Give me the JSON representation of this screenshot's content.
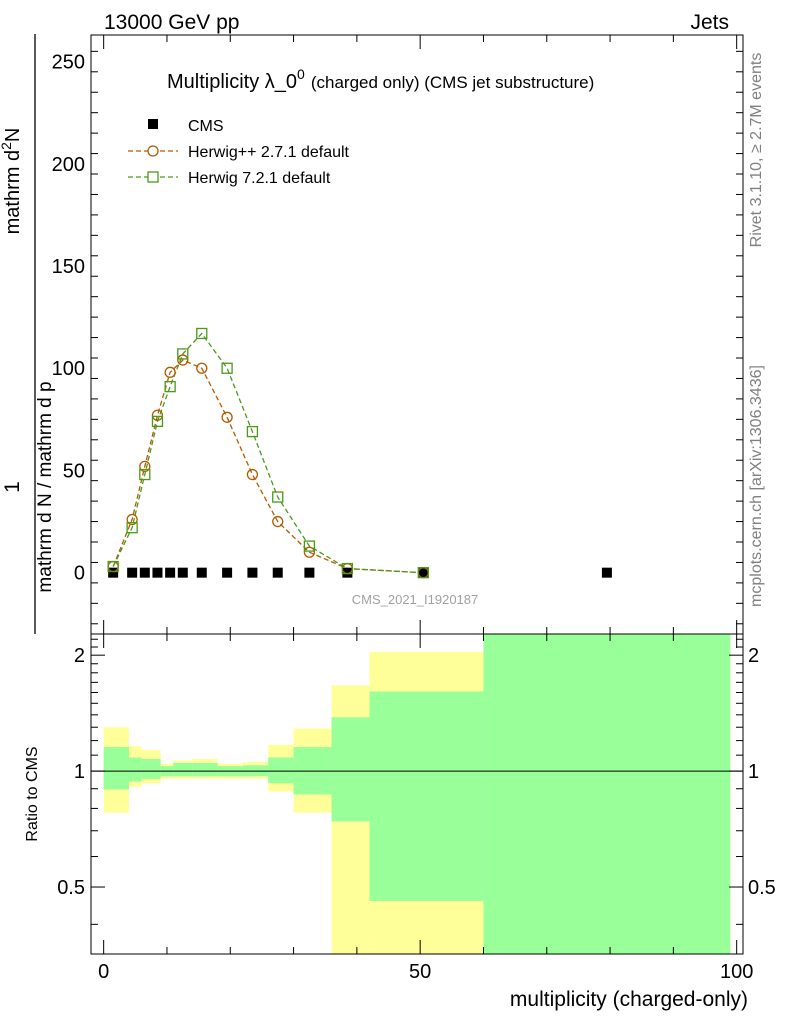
{
  "header": {
    "left": "13000 GeV pp",
    "right": "Jets"
  },
  "side_labels": {
    "rivet": "Rivet 3.1.10, ≥ 2.7M events",
    "mcplots": "mcplots.cern.ch [arXiv:1306.3436]"
  },
  "watermark": "CMS_2021_I1920187",
  "chart_data": [
    {
      "type": "scatter",
      "panel": "main",
      "title": "Multiplicity λ_0",
      "title_sup": "0",
      "subtitle": "(charged only) (CMS jet substructure)",
      "xlabel": "multiplicity (charged-only)",
      "ylabel_numerator_top": "1",
      "ylabel_numerator_bottom": "mathrm d N / mathrm d p",
      "ylabel_denominator_top": "mathrm d",
      "ylabel_denominator_top_sup": "2",
      "ylabel_denominator_bottom": "N",
      "xlim": [
        -2,
        101
      ],
      "ylim": [
        -30,
        263
      ],
      "yticks": [
        0,
        50,
        100,
        150,
        200,
        250
      ],
      "xticks": [
        0,
        50,
        100
      ],
      "legend_position": "top-left",
      "series": [
        {
          "name": "CMS",
          "marker": "square-filled",
          "color": "#000000",
          "points": [
            [
              1.5,
              0
            ],
            [
              4.5,
              0
            ],
            [
              6.5,
              0
            ],
            [
              8.5,
              0
            ],
            [
              10.5,
              0
            ],
            [
              12.5,
              0
            ],
            [
              15.5,
              0
            ],
            [
              19.5,
              0
            ],
            [
              23.5,
              0
            ],
            [
              27.5,
              0
            ],
            [
              32.5,
              0
            ],
            [
              38.5,
              0
            ],
            [
              50.5,
              0
            ],
            [
              79.5,
              0
            ]
          ]
        },
        {
          "name": "Herwig++ 2.7.1 default",
          "marker": "circle-open",
          "line": "dashed",
          "color": "#b35a00",
          "points": [
            [
              1.5,
              3
            ],
            [
              4.5,
              26
            ],
            [
              6.5,
              52
            ],
            [
              8.5,
              77
            ],
            [
              10.5,
              98
            ],
            [
              12.5,
              104
            ],
            [
              15.5,
              100
            ],
            [
              19.5,
              76
            ],
            [
              23.5,
              48
            ],
            [
              27.5,
              25
            ],
            [
              32.5,
              10
            ],
            [
              38.5,
              2
            ],
            [
              50.5,
              0
            ]
          ]
        },
        {
          "name": "Herwig 7.2.1 default",
          "marker": "square-open",
          "line": "dashed",
          "color": "#4a9a1a",
          "points": [
            [
              1.5,
              3
            ],
            [
              4.5,
              22
            ],
            [
              6.5,
              48
            ],
            [
              8.5,
              74
            ],
            [
              10.5,
              91
            ],
            [
              12.5,
              107
            ],
            [
              15.5,
              117
            ],
            [
              19.5,
              100
            ],
            [
              23.5,
              69
            ],
            [
              27.5,
              37
            ],
            [
              32.5,
              13
            ],
            [
              38.5,
              2
            ],
            [
              50.5,
              0
            ]
          ]
        }
      ]
    },
    {
      "type": "area",
      "panel": "ratio",
      "ylabel": "Ratio to CMS",
      "xlim": [
        -2,
        101
      ],
      "ylim": [
        0.335,
        2.27
      ],
      "yticks": [
        "0.5",
        "1",
        "2"
      ],
      "yticks_values": [
        0.5,
        1,
        2
      ],
      "reference_line": 1,
      "colors": {
        "outer_band": "#ffff99",
        "inner_band": "#99ff99",
        "reference": "#000000"
      },
      "bins": [
        {
          "lo": 0,
          "hi": 4,
          "inner": [
            0.896,
            1.155
          ],
          "outer": [
            0.78,
            1.3
          ]
        },
        {
          "lo": 4,
          "hi": 6,
          "inner": [
            0.94,
            1.085
          ],
          "outer": [
            0.91,
            1.16
          ]
        },
        {
          "lo": 6,
          "hi": 9,
          "inner": [
            0.955,
            1.075
          ],
          "outer": [
            0.93,
            1.135
          ]
        },
        {
          "lo": 9,
          "hi": 11,
          "inner": [
            0.97,
            1.03
          ],
          "outer": [
            0.955,
            1.045
          ]
        },
        {
          "lo": 11,
          "hi": 14,
          "inner": [
            0.97,
            1.05
          ],
          "outer": [
            0.955,
            1.065
          ]
        },
        {
          "lo": 14,
          "hi": 18,
          "inner": [
            0.97,
            1.05
          ],
          "outer": [
            0.955,
            1.075
          ]
        },
        {
          "lo": 18,
          "hi": 22,
          "inner": [
            0.97,
            1.03
          ],
          "outer": [
            0.955,
            1.045
          ]
        },
        {
          "lo": 22,
          "hi": 26,
          "inner": [
            0.97,
            1.035
          ],
          "outer": [
            0.955,
            1.055
          ]
        },
        {
          "lo": 26,
          "hi": 30,
          "inner": [
            0.93,
            1.085
          ],
          "outer": [
            0.885,
            1.17
          ]
        },
        {
          "lo": 30,
          "hi": 36,
          "inner": [
            0.87,
            1.155
          ],
          "outer": [
            0.78,
            1.29
          ]
        },
        {
          "lo": 36,
          "hi": 42,
          "inner": [
            0.74,
            1.38
          ],
          "outer": [
            0.335,
            1.67
          ]
        },
        {
          "lo": 42,
          "hi": 60,
          "inner": [
            0.46,
            1.61
          ],
          "outer": [
            0.335,
            2.04
          ]
        },
        {
          "lo": 60,
          "hi": 99,
          "inner": [
            0.335,
            2.27
          ],
          "outer": [
            0.335,
            2.27
          ]
        }
      ]
    }
  ]
}
